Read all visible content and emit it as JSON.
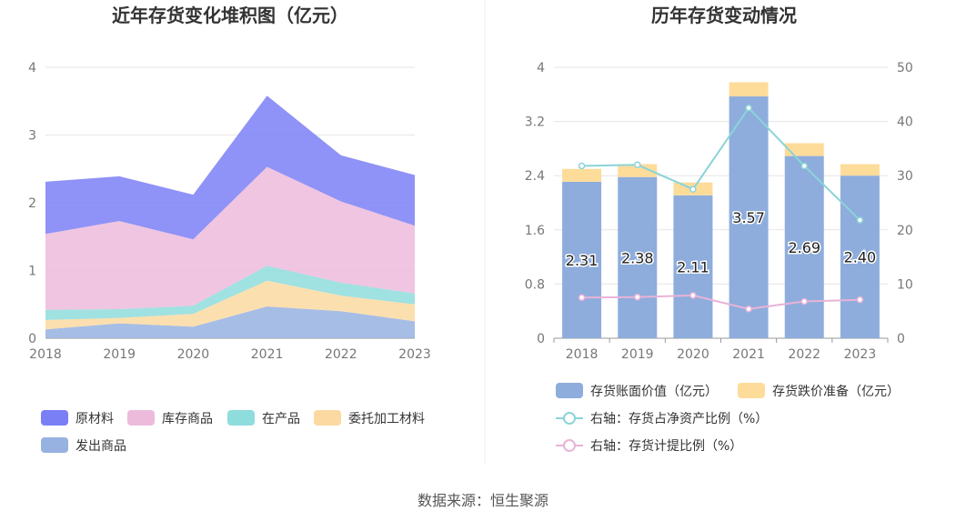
{
  "footer": {
    "source": "数据来源：恒生聚源"
  },
  "colors": {
    "raw": "#7b7ff5",
    "stock": "#ecbbdc",
    "wip": "#8fdcdc",
    "consign": "#fcd9a1",
    "shipped": "#97b2e0",
    "bar_main": "#8eaddc",
    "bar_top": "#fddc9a",
    "line_net": "#8bd4d8",
    "line_prov": "#e8b3d8"
  },
  "chart_data": [
    {
      "type": "area",
      "title": "近年存货变化堆积图（亿元）",
      "x": [
        "2018",
        "2019",
        "2020",
        "2021",
        "2022",
        "2023"
      ],
      "ylim": [
        0,
        4
      ],
      "yticks": [
        "0",
        "1",
        "2",
        "3",
        "4"
      ],
      "grid": true,
      "legend_position": "bottom",
      "series": [
        {
          "name": "发出商品",
          "key": "shipped",
          "values": [
            0.13,
            0.22,
            0.17,
            0.47,
            0.4,
            0.25
          ]
        },
        {
          "name": "委托加工材料",
          "key": "consign",
          "values": [
            0.14,
            0.08,
            0.19,
            0.38,
            0.23,
            0.25
          ]
        },
        {
          "name": "在产品",
          "key": "wip",
          "values": [
            0.15,
            0.13,
            0.12,
            0.22,
            0.19,
            0.16
          ]
        },
        {
          "name": "库存商品",
          "key": "stock",
          "values": [
            1.12,
            1.3,
            0.98,
            1.46,
            1.2,
            1.0
          ]
        },
        {
          "name": "原材料",
          "key": "raw",
          "values": [
            0.77,
            0.66,
            0.66,
            1.05,
            0.68,
            0.75
          ]
        }
      ],
      "legend_order": [
        "原材料",
        "库存商品",
        "在产品",
        "委托加工材料",
        "发出商品"
      ]
    },
    {
      "type": "bar",
      "title": "历年存货变动情况",
      "categories": [
        "2018",
        "2019",
        "2020",
        "2021",
        "2022",
        "2023"
      ],
      "ylim": [
        0,
        4
      ],
      "yticks": [
        "0",
        "0.8",
        "1.6",
        "2.4",
        "3.2",
        "4"
      ],
      "y2lim": [
        0,
        50
      ],
      "y2ticks": [
        "0",
        "10",
        "20",
        "30",
        "40",
        "50"
      ],
      "grid": true,
      "legend_position": "bottom",
      "series": [
        {
          "name": "存货账面价值（亿元）",
          "type": "bar",
          "values": [
            2.31,
            2.38,
            2.11,
            3.57,
            2.69,
            2.4
          ],
          "labels": [
            "2.31",
            "2.38",
            "2.11",
            "3.57",
            "2.69",
            "2.40"
          ]
        },
        {
          "name": "存货跌价准备（亿元）",
          "type": "bar",
          "values": [
            0.19,
            0.19,
            0.19,
            0.21,
            0.19,
            0.17
          ]
        },
        {
          "name": "右轴：存货占净资产比例（%）",
          "type": "line",
          "axis": "right",
          "values": [
            31.8,
            32.0,
            27.5,
            42.5,
            31.8,
            21.8
          ]
        },
        {
          "name": "右轴：存货计提比例（%）",
          "type": "line",
          "axis": "right",
          "values": [
            7.5,
            7.6,
            7.9,
            5.4,
            6.8,
            7.1
          ]
        }
      ]
    }
  ]
}
